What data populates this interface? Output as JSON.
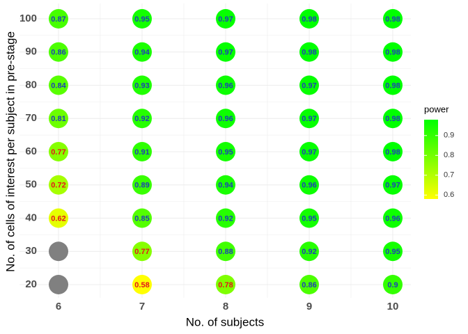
{
  "chart_data": {
    "type": "dot-matrix",
    "x_title": "No. of subjects",
    "y_title": "No. of cells of interest per subject in pre-stage",
    "x_categories": [
      6,
      7,
      8,
      9,
      10
    ],
    "y_categories": [
      20,
      30,
      40,
      50,
      60,
      70,
      80,
      90,
      100
    ],
    "values": [
      [
        null,
        0.58,
        0.78,
        0.86,
        0.9
      ],
      [
        null,
        0.77,
        0.88,
        0.92,
        0.95
      ],
      [
        0.62,
        0.85,
        0.92,
        0.95,
        0.96
      ],
      [
        0.72,
        0.89,
        0.94,
        0.96,
        0.97
      ],
      [
        0.77,
        0.91,
        0.95,
        0.97,
        0.98
      ],
      [
        0.81,
        0.92,
        0.96,
        0.97,
        0.98
      ],
      [
        0.84,
        0.93,
        0.96,
        0.97,
        0.98
      ],
      [
        0.86,
        0.94,
        0.97,
        0.98,
        0.98
      ],
      [
        0.87,
        0.95,
        0.97,
        0.98,
        0.98
      ]
    ],
    "label_colors": [
      [
        null,
        "#e4141b",
        "#e4141b",
        "#1f3fb5",
        "#1f3fb5"
      ],
      [
        null,
        "#e4141b",
        "#1f3fb5",
        "#1f3fb5",
        "#1f3fb5"
      ],
      [
        "#e4141b",
        "#1f3fb5",
        "#1f3fb5",
        "#1f3fb5",
        "#1f3fb5"
      ],
      [
        "#e4141b",
        "#1f3fb5",
        "#1f3fb5",
        "#1f3fb5",
        "#1f3fb5"
      ],
      [
        "#e4141b",
        "#1f3fb5",
        "#1f3fb5",
        "#1f3fb5",
        "#1f3fb5"
      ],
      [
        "#1f3fb5",
        "#1f3fb5",
        "#1f3fb5",
        "#1f3fb5",
        "#1f3fb5"
      ],
      [
        "#1f3fb5",
        "#1f3fb5",
        "#1f3fb5",
        "#1f3fb5",
        "#1f3fb5"
      ],
      [
        "#1f3fb5",
        "#1f3fb5",
        "#1f3fb5",
        "#1f3fb5",
        "#1f3fb5"
      ],
      [
        "#1f3fb5",
        "#1f3fb5",
        "#1f3fb5",
        "#1f3fb5",
        "#1f3fb5"
      ]
    ],
    "na_color": "#808080",
    "colorbar": {
      "title": "power",
      "lim": [
        0.58,
        0.98
      ],
      "ticks": [
        0.6,
        0.7,
        0.8,
        0.9
      ],
      "low_color": "#ffff00",
      "high_color": "#00ff00"
    },
    "grid": true
  }
}
